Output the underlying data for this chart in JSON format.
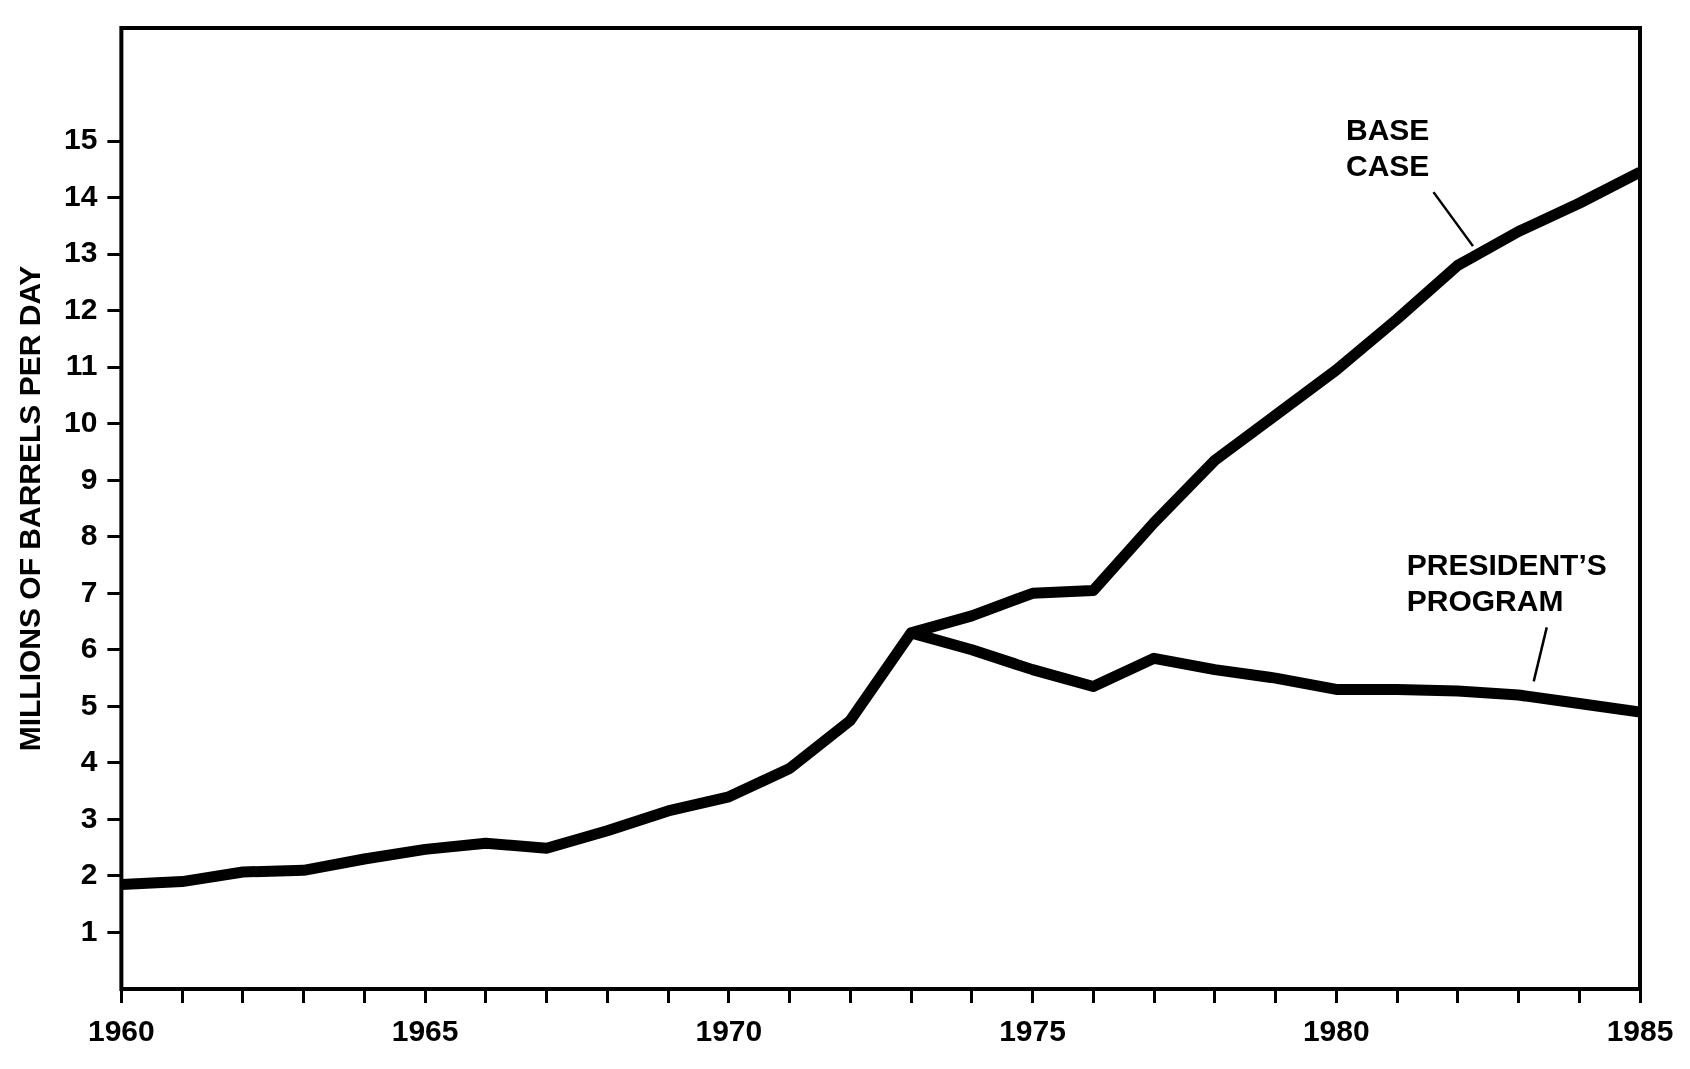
{
  "chart_data": {
    "type": "line",
    "ylabel": "MILLIONS OF BARRELS PER DAY",
    "series": [
      {
        "x": [
          1960,
          1961,
          1962,
          1963,
          1964,
          1965,
          1966,
          1967,
          1968,
          1969,
          1970,
          1971,
          1972,
          1973,
          1974,
          1975,
          1976,
          1977,
          1978,
          1979,
          1980,
          1981,
          1982,
          1983,
          1984,
          1985
        ],
        "values": [
          1.85,
          1.9,
          2.07,
          2.1,
          2.3,
          2.47,
          2.58,
          2.49,
          2.8,
          3.15,
          3.4,
          3.9,
          4.75,
          6.3,
          6.6,
          7.0,
          7.05,
          8.25,
          9.35,
          10.15,
          10.95,
          11.85,
          12.8,
          13.4,
          13.9,
          14.45
        ],
        "color": "#000000"
      },
      {
        "x": [
          1973,
          1974,
          1975,
          1976,
          1977,
          1978,
          1979,
          1980,
          1981,
          1982,
          1983,
          1984,
          1985
        ],
        "values": [
          6.3,
          6.0,
          5.65,
          5.35,
          5.85,
          5.65,
          5.5,
          5.3,
          5.3,
          5.27,
          5.2,
          5.05,
          4.9
        ],
        "color": "#000000"
      }
    ],
    "annotations": [
      {
        "text": "BASE CASE",
        "x": 1982.3,
        "y": 13.0
      },
      {
        "text": "PRESIDENT’S PROGRAM",
        "x": 1983.3,
        "y": 5.3
      }
    ],
    "xlim": [
      1960,
      1985
    ],
    "xticks": [
      1960,
      {
        "value": 1961,
        "label": null
      },
      {
        "value": 1962,
        "label": null
      },
      {
        "value": 1963,
        "label": null
      },
      {
        "value": 1964,
        "label": null
      },
      1965,
      {
        "value": 1966,
        "label": null
      },
      {
        "value": 1967,
        "label": null
      },
      {
        "value": 1968,
        "label": null
      },
      {
        "value": 1969,
        "label": null
      },
      1970,
      {
        "value": 1971,
        "label": null
      },
      {
        "value": 1972,
        "label": null
      },
      {
        "value": 1973,
        "label": null
      },
      {
        "value": 1974,
        "label": null
      },
      1975,
      {
        "value": 1976,
        "label": null
      },
      {
        "value": 1977,
        "label": null
      },
      {
        "value": 1978,
        "label": null
      },
      {
        "value": 1979,
        "label": null
      },
      1980,
      {
        "value": 1981,
        "label": null
      },
      {
        "value": 1982,
        "label": null
      },
      {
        "value": 1983,
        "label": null
      },
      {
        "value": 1984,
        "label": null
      },
      1985
    ],
    "ylim": [
      0,
      17
    ],
    "yticks": [
      1,
      2,
      3,
      4,
      5,
      6,
      7,
      8,
      9,
      10,
      11,
      12,
      13,
      14,
      15
    ],
    "grid": false,
    "legend": false,
    "marker": "none",
    "line_style": "solid"
  }
}
